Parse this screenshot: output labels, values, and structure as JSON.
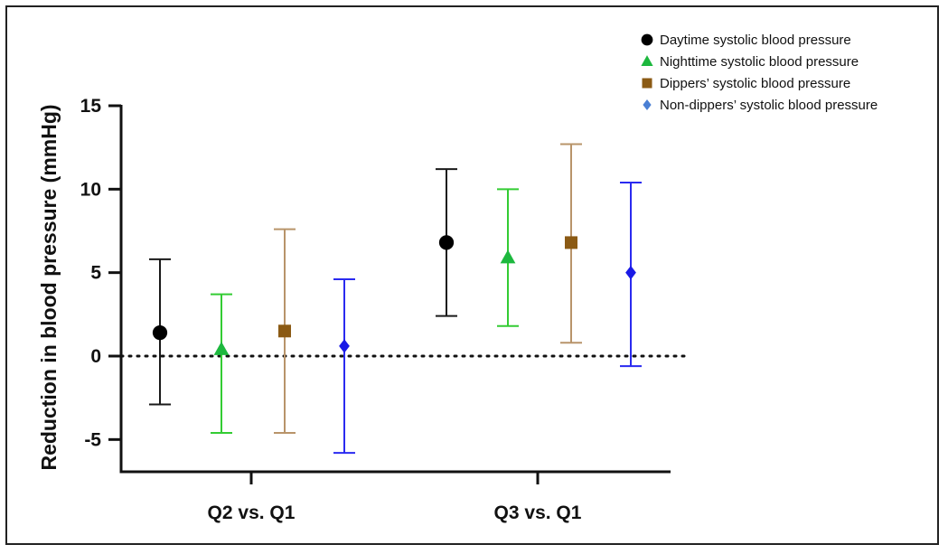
{
  "chart_data": {
    "type": "scatter",
    "subtype": "point-estimate-with-error-bars",
    "categories": [
      "Q2 vs. Q1",
      "Q3 vs. Q1"
    ],
    "ylabel": "Reduction in blood pressure  (mmHg)",
    "xlabel": "",
    "ylim": [
      -7,
      15
    ],
    "yticks": [
      15,
      10,
      5,
      0,
      -5
    ],
    "ytick_labels": [
      "15",
      "10",
      "5",
      "0",
      "-5"
    ],
    "reference_line": {
      "y": 0,
      "style": "dotted"
    },
    "legend_position": "top-right",
    "series": [
      {
        "name": "Daytime systolic blood pressure",
        "marker": "circle",
        "color": "#000000",
        "bar_color": "#1a1a1a",
        "values": [
          1.4,
          6.8
        ],
        "lower": [
          -2.9,
          2.4
        ],
        "upper": [
          5.8,
          11.2
        ]
      },
      {
        "name": "Nighttime systolic blood pressure",
        "marker": "triangle",
        "color": "#1db83e",
        "bar_color": "#33cc33",
        "values": [
          0.4,
          5.9
        ],
        "lower": [
          -4.6,
          1.8
        ],
        "upper": [
          3.7,
          10.0
        ]
      },
      {
        "name": "Dippers’ systolic blood pressure",
        "marker": "square",
        "color": "#8b5a14",
        "bar_color": "#b8946a",
        "values": [
          1.5,
          6.8
        ],
        "lower": [
          -4.6,
          0.8
        ],
        "upper": [
          7.6,
          12.7
        ]
      },
      {
        "name": "Non-dippers’ systolic blood pressure",
        "marker": "diamond",
        "color": "#1a1ae6",
        "legend_color": "#4a7fd4",
        "bar_color": "#2a2af0",
        "values": [
          0.6,
          5.0
        ],
        "lower": [
          -5.8,
          -0.6
        ],
        "upper": [
          4.6,
          10.4
        ]
      }
    ]
  }
}
